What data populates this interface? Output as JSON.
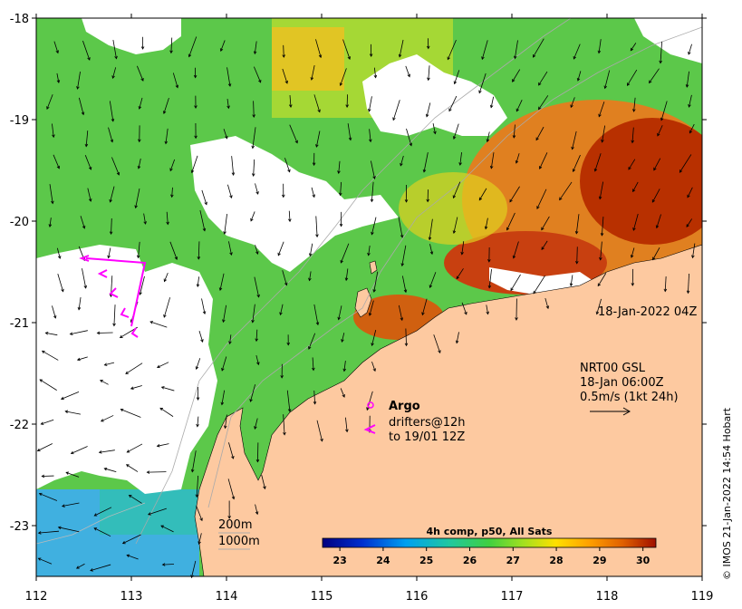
{
  "map": {
    "lon_ticks": [
      "112",
      "113",
      "114",
      "115",
      "116",
      "117",
      "118",
      "119"
    ],
    "lat_ticks": [
      "-18",
      "-19",
      "-20",
      "-21",
      "-22",
      "-23"
    ],
    "lon_range": [
      112,
      119
    ],
    "lat_range": [
      -23.5,
      -18
    ]
  },
  "annotations": {
    "timestamp": "18-Jan-2022 04Z",
    "current_line1": "NRT00 GSL",
    "current_line2": "18-Jan 06:00Z",
    "current_line3": "0.5m/s (1kt 24h)",
    "argo_label": "Argo",
    "drifters_line1": "drifters@12h",
    "drifters_line2": "to 19/01 12Z",
    "depth_200": "200m",
    "depth_1000": "1000m"
  },
  "colorbar": {
    "title": "4h comp, p50, All Sats",
    "ticks": [
      "23",
      "24",
      "25",
      "26",
      "27",
      "28",
      "29",
      "30"
    ],
    "range": [
      22.6,
      30.3
    ]
  },
  "credit": "© IMOS 21-Jan-2022 14:54 Hobart",
  "colors": {
    "land": "#fdc9a0",
    "cloud": "#ffffff",
    "drifter": "#ff00ff"
  }
}
